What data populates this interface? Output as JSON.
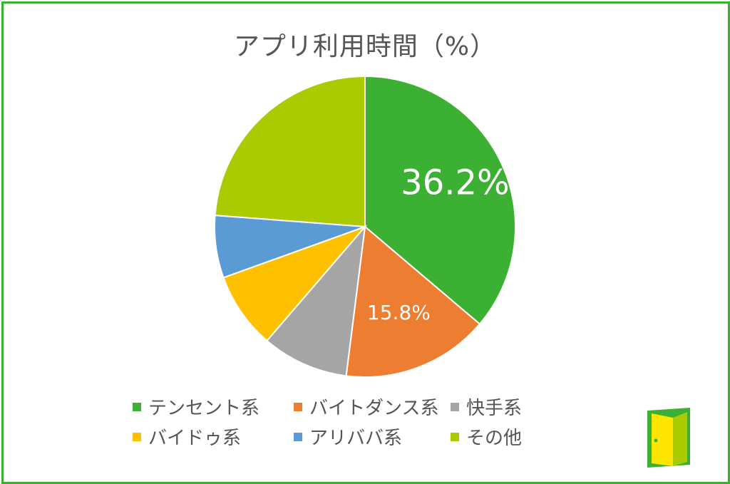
{
  "chart_data": {
    "type": "pie",
    "title": "アプリ利用時間（%）",
    "series": [
      {
        "name": "テンセント系",
        "value": 36.2,
        "color": "#3cb032",
        "label": "36.2%"
      },
      {
        "name": "バイトダンス系",
        "value": 15.8,
        "color": "#ed7d31",
        "label": "15.8%"
      },
      {
        "name": "快手系",
        "value": 9.3,
        "color": "#a5a5a5"
      },
      {
        "name": "バイドゥ系",
        "value": 8.2,
        "color": "#ffc000"
      },
      {
        "name": "アリババ系",
        "value": 6.7,
        "color": "#5b9bd5"
      },
      {
        "name": "その他",
        "value": 23.8,
        "color": "#a9cb00"
      }
    ],
    "legend_position": "bottom"
  },
  "logo": {
    "icon": "door-logo-icon",
    "colors": [
      "#3cb032",
      "#a9cb00",
      "#ffe600"
    ]
  }
}
